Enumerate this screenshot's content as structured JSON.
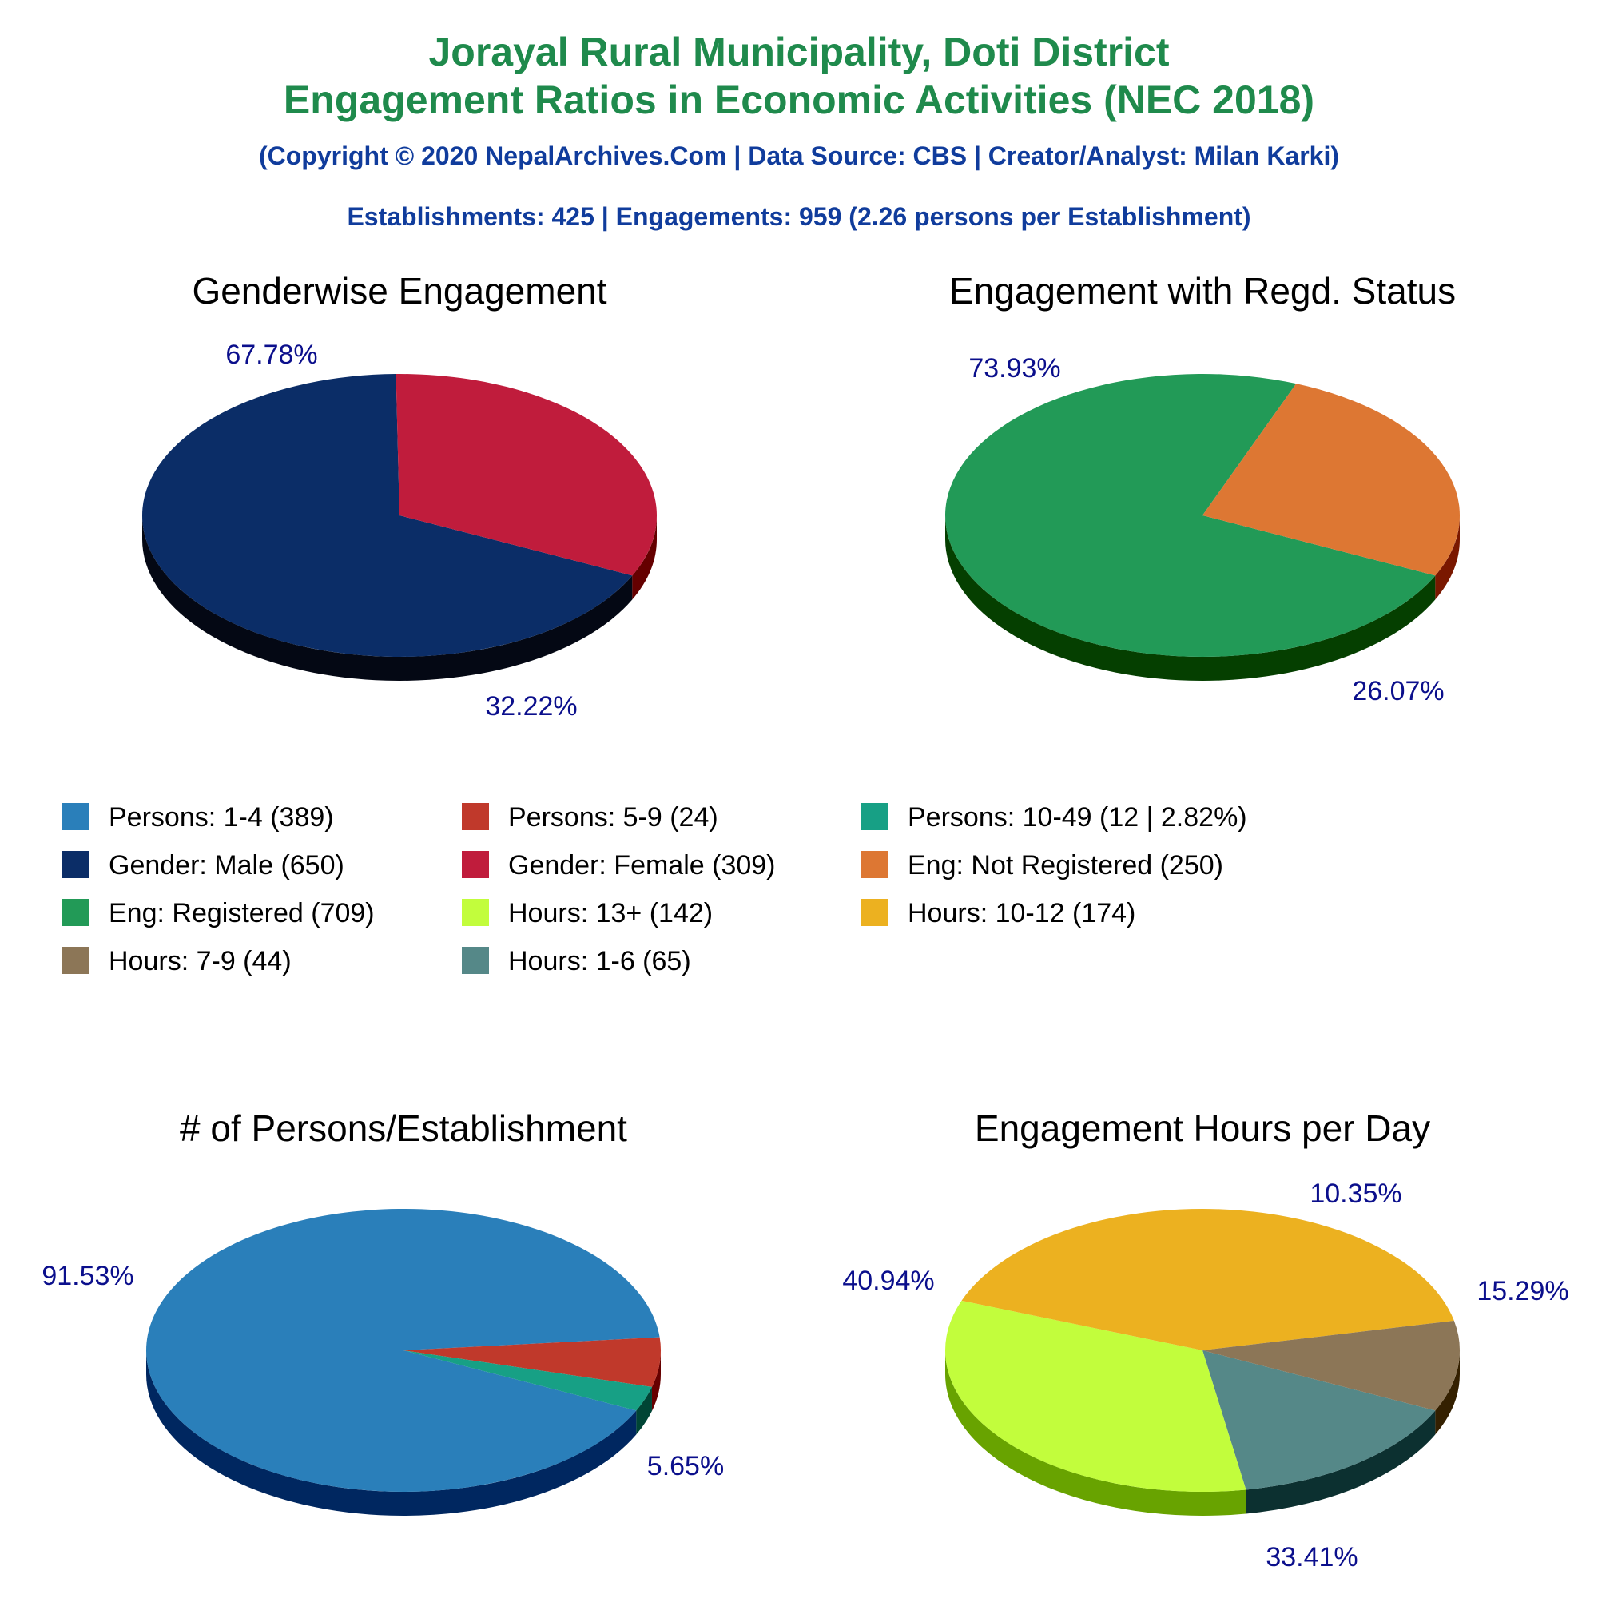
{
  "header": {
    "title_line1": "Jorayal Rural Municipality, Doti District",
    "title_line2": "Engagement Ratios in Economic Activities (NEC 2018)",
    "copyright": "(Copyright © 2020 NepalArchives.Com | Data Source: CBS | Creator/Analyst: Milan Karki)",
    "summary": "Establishments: 425 | Engagements: 959 (2.26 persons per Establishment)"
  },
  "legend": [
    {
      "label": "Persons: 1-4 (389)",
      "color": "#2a7fba"
    },
    {
      "label": "Persons: 5-9 (24)",
      "color": "#c0392b"
    },
    {
      "label": "Persons: 10-49 (12 | 2.82%)",
      "color": "#17a085"
    },
    {
      "label": "Gender: Male (650)",
      "color": "#0b2d67"
    },
    {
      "label": "Gender: Female (309)",
      "color": "#c01c3c"
    },
    {
      "label": "Eng: Not Registered (250)",
      "color": "#dd7733"
    },
    {
      "label": "Eng: Registered (709)",
      "color": "#229a57"
    },
    {
      "label": "Hours: 13+ (142)",
      "color": "#c2fd3c"
    },
    {
      "label": "Hours: 10-12 (174)",
      "color": "#ecb120"
    },
    {
      "label": "Hours: 7-9 (44)",
      "color": "#8c7657"
    },
    {
      "label": "Hours: 1-6 (65)",
      "color": "#558888"
    }
  ],
  "chart_data": [
    {
      "type": "pie",
      "title": "Genderwise Engagement",
      "slices": [
        {
          "name": "Gender: Male",
          "value": 650,
          "label": "67.78%",
          "color": "#0b2d67",
          "side": "#040814"
        },
        {
          "name": "Gender: Female",
          "value": 309,
          "label": "32.22%",
          "color": "#c01c3c",
          "side": "#650000"
        }
      ]
    },
    {
      "type": "pie",
      "title": "Engagement with Regd. Status",
      "slices": [
        {
          "name": "Eng: Registered",
          "value": 709,
          "label": "73.93%",
          "color": "#229a57",
          "side": "#053f00"
        },
        {
          "name": "Eng: Not Registered",
          "value": 250,
          "label": "26.07%",
          "color": "#dd7733",
          "side": "#7a1800"
        }
      ]
    },
    {
      "type": "pie",
      "title": "# of Persons/Establishment",
      "slices": [
        {
          "name": "Persons: 1-4",
          "value": 389,
          "label": "91.53%",
          "color": "#2a7fba",
          "side": "#002760"
        },
        {
          "name": "Persons: 5-9",
          "value": 24,
          "label": "5.65%",
          "color": "#c0392b",
          "side": "#660000"
        },
        {
          "name": "Persons: 10-49",
          "value": 12,
          "label": "",
          "color": "#17a085",
          "side": "#004535"
        }
      ]
    },
    {
      "type": "pie",
      "title": "Engagement Hours per Day",
      "slices": [
        {
          "name": "Hours: 1-6",
          "value": 65,
          "label": "15.29%",
          "color": "#558888",
          "side": "#0c3030"
        },
        {
          "name": "Hours: 13+",
          "value": 142,
          "label": "33.41%",
          "color": "#c2fd3c",
          "side": "#68a300"
        },
        {
          "name": "Hours: 10-12",
          "value": 174,
          "label": "40.94%",
          "color": "#ecb120",
          "side": "#945500"
        },
        {
          "name": "Hours: 7-9",
          "value": 44,
          "label": "10.35%",
          "color": "#8c7657",
          "side": "#342000"
        }
      ]
    }
  ]
}
